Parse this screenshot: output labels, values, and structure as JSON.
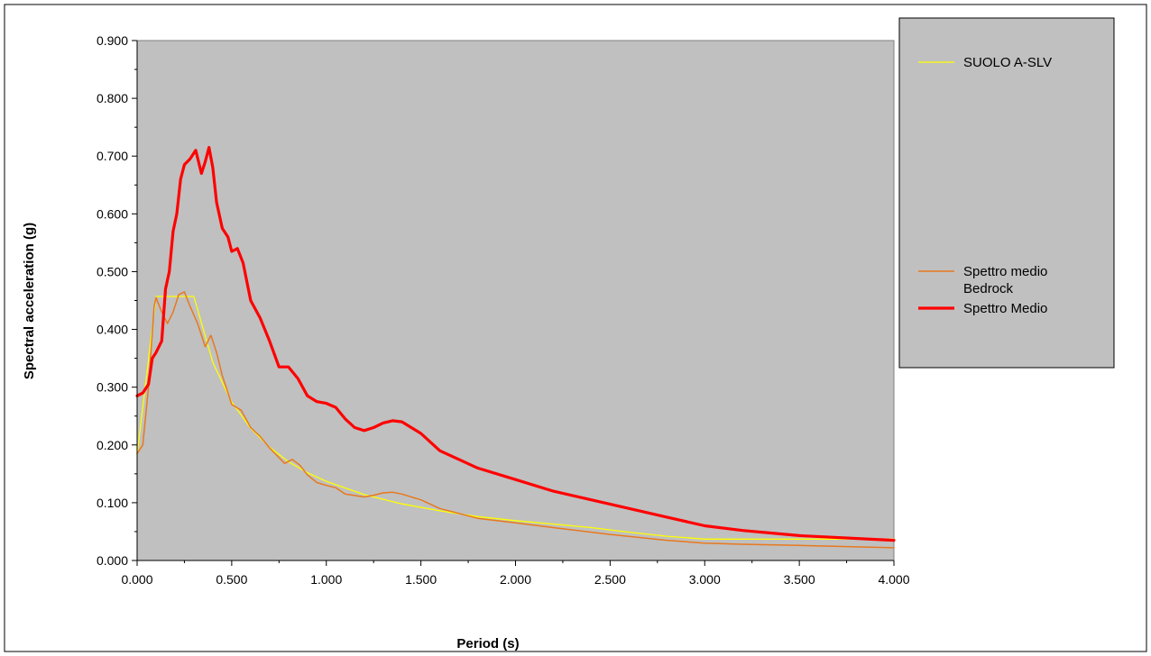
{
  "chart_data": {
    "type": "line",
    "title": "",
    "xlabel": "Period (s)",
    "ylabel": "Spectral acceleration (g)",
    "xlim": [
      0,
      4
    ],
    "ylim": [
      0,
      0.9
    ],
    "x_ticks": [
      "0.000",
      "0.500",
      "1.000",
      "1.500",
      "2.000",
      "2.500",
      "3.000",
      "3.500",
      "4.000"
    ],
    "y_ticks": [
      "0.000",
      "0.100",
      "0.200",
      "0.300",
      "0.400",
      "0.500",
      "0.600",
      "0.700",
      "0.800",
      "0.900"
    ],
    "grid": false,
    "plot_background": "#c0c0c0",
    "legend_position": "right",
    "series": [
      {
        "name": "SUOLO A-SLV",
        "color": "#ffff00",
        "line_width": "thin",
        "points": [
          [
            0,
            0.183
          ],
          [
            0.1,
            0.457
          ],
          [
            0.3,
            0.457
          ],
          [
            0.4,
            0.343
          ],
          [
            0.5,
            0.274
          ],
          [
            0.6,
            0.229
          ],
          [
            0.7,
            0.196
          ],
          [
            0.8,
            0.171
          ],
          [
            0.9,
            0.152
          ],
          [
            1.0,
            0.137
          ],
          [
            1.2,
            0.114
          ],
          [
            1.4,
            0.098
          ],
          [
            1.6,
            0.086
          ],
          [
            1.8,
            0.076
          ],
          [
            2.0,
            0.069
          ],
          [
            2.2,
            0.063
          ],
          [
            2.4,
            0.057
          ],
          [
            2.6,
            0.049
          ],
          [
            2.8,
            0.042
          ],
          [
            3.0,
            0.037
          ],
          [
            3.5,
            0.037
          ],
          [
            4.0,
            0.037
          ]
        ]
      },
      {
        "name": "Spettro medio Bedrock",
        "color": "#e8781e",
        "line_width": "medium",
        "points": [
          [
            0,
            0.185
          ],
          [
            0.03,
            0.2
          ],
          [
            0.06,
            0.3
          ],
          [
            0.09,
            0.44
          ],
          [
            0.1,
            0.455
          ],
          [
            0.13,
            0.43
          ],
          [
            0.16,
            0.41
          ],
          [
            0.19,
            0.43
          ],
          [
            0.22,
            0.46
          ],
          [
            0.25,
            0.465
          ],
          [
            0.28,
            0.44
          ],
          [
            0.32,
            0.41
          ],
          [
            0.36,
            0.37
          ],
          [
            0.39,
            0.39
          ],
          [
            0.42,
            0.36
          ],
          [
            0.45,
            0.32
          ],
          [
            0.5,
            0.27
          ],
          [
            0.55,
            0.26
          ],
          [
            0.6,
            0.23
          ],
          [
            0.65,
            0.215
          ],
          [
            0.7,
            0.195
          ],
          [
            0.78,
            0.168
          ],
          [
            0.82,
            0.175
          ],
          [
            0.86,
            0.165
          ],
          [
            0.9,
            0.148
          ],
          [
            0.95,
            0.135
          ],
          [
            1.0,
            0.13
          ],
          [
            1.05,
            0.126
          ],
          [
            1.1,
            0.115
          ],
          [
            1.2,
            0.11
          ],
          [
            1.25,
            0.113
          ],
          [
            1.3,
            0.117
          ],
          [
            1.35,
            0.118
          ],
          [
            1.4,
            0.115
          ],
          [
            1.5,
            0.105
          ],
          [
            1.6,
            0.09
          ],
          [
            1.8,
            0.073
          ],
          [
            2.0,
            0.065
          ],
          [
            2.2,
            0.057
          ],
          [
            2.5,
            0.045
          ],
          [
            2.8,
            0.035
          ],
          [
            3.0,
            0.03
          ],
          [
            3.2,
            0.028
          ],
          [
            3.5,
            0.026
          ],
          [
            4.0,
            0.022
          ]
        ]
      },
      {
        "name": "Spettro Medio",
        "color": "#ff0000",
        "line_width": "thick",
        "points": [
          [
            0,
            0.285
          ],
          [
            0.03,
            0.29
          ],
          [
            0.06,
            0.305
          ],
          [
            0.08,
            0.35
          ],
          [
            0.1,
            0.36
          ],
          [
            0.13,
            0.38
          ],
          [
            0.15,
            0.47
          ],
          [
            0.17,
            0.5
          ],
          [
            0.19,
            0.57
          ],
          [
            0.21,
            0.6
          ],
          [
            0.23,
            0.66
          ],
          [
            0.25,
            0.685
          ],
          [
            0.28,
            0.695
          ],
          [
            0.31,
            0.71
          ],
          [
            0.34,
            0.67
          ],
          [
            0.36,
            0.69
          ],
          [
            0.38,
            0.715
          ],
          [
            0.4,
            0.68
          ],
          [
            0.42,
            0.62
          ],
          [
            0.45,
            0.575
          ],
          [
            0.48,
            0.56
          ],
          [
            0.5,
            0.535
          ],
          [
            0.53,
            0.54
          ],
          [
            0.56,
            0.515
          ],
          [
            0.6,
            0.45
          ],
          [
            0.65,
            0.42
          ],
          [
            0.7,
            0.38
          ],
          [
            0.75,
            0.335
          ],
          [
            0.8,
            0.335
          ],
          [
            0.85,
            0.315
          ],
          [
            0.9,
            0.285
          ],
          [
            0.95,
            0.275
          ],
          [
            1.0,
            0.272
          ],
          [
            1.05,
            0.265
          ],
          [
            1.1,
            0.245
          ],
          [
            1.15,
            0.23
          ],
          [
            1.2,
            0.225
          ],
          [
            1.25,
            0.23
          ],
          [
            1.3,
            0.238
          ],
          [
            1.35,
            0.242
          ],
          [
            1.4,
            0.24
          ],
          [
            1.5,
            0.22
          ],
          [
            1.6,
            0.19
          ],
          [
            1.8,
            0.16
          ],
          [
            2.0,
            0.14
          ],
          [
            2.2,
            0.12
          ],
          [
            2.4,
            0.105
          ],
          [
            2.6,
            0.09
          ],
          [
            2.8,
            0.075
          ],
          [
            3.0,
            0.06
          ],
          [
            3.2,
            0.052
          ],
          [
            3.5,
            0.043
          ],
          [
            4.0,
            0.035
          ]
        ]
      }
    ]
  }
}
